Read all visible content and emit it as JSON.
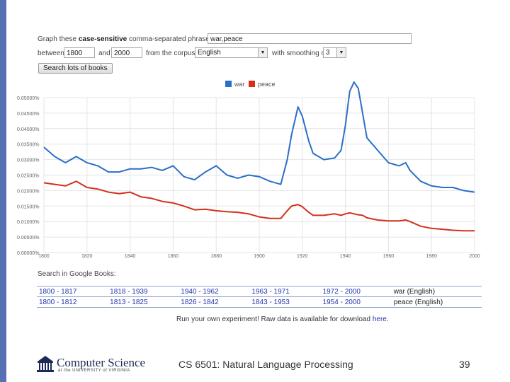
{
  "form": {
    "graph_prefix": "Graph these",
    "graph_bold": "case-sensitive",
    "graph_suffix": "comma-separated phrases:",
    "phrases_value": "war,peace",
    "between_label": "between",
    "start_year": "1800",
    "and_label": "and",
    "end_year": "2000",
    "corpus_label": "from the corpus",
    "corpus_value": "English",
    "smoothing_label": "with smoothing of",
    "smoothing_value": "3",
    "search_button": "Search lots of books"
  },
  "chart_data": {
    "type": "line",
    "x": [
      1800,
      1805,
      1810,
      1815,
      1820,
      1825,
      1830,
      1835,
      1840,
      1845,
      1850,
      1855,
      1860,
      1865,
      1870,
      1875,
      1880,
      1885,
      1890,
      1895,
      1900,
      1905,
      1910,
      1913,
      1915,
      1918,
      1920,
      1923,
      1925,
      1930,
      1935,
      1938,
      1940,
      1942,
      1944,
      1946,
      1948,
      1950,
      1955,
      1960,
      1965,
      1968,
      1970,
      1975,
      1980,
      1985,
      1990,
      1995,
      2000
    ],
    "series": [
      {
        "name": "war",
        "color": "#2a6fc9",
        "values": [
          0.0034,
          0.0031,
          0.0029,
          0.0031,
          0.0029,
          0.0028,
          0.0026,
          0.0026,
          0.0027,
          0.0027,
          0.00275,
          0.00265,
          0.0028,
          0.00245,
          0.00235,
          0.0026,
          0.0028,
          0.0025,
          0.0024,
          0.0025,
          0.00245,
          0.0023,
          0.0022,
          0.003,
          0.0038,
          0.0047,
          0.0044,
          0.0036,
          0.0032,
          0.003,
          0.00305,
          0.0033,
          0.0041,
          0.0052,
          0.0055,
          0.0053,
          0.0045,
          0.0037,
          0.0033,
          0.0029,
          0.0028,
          0.0029,
          0.00265,
          0.0023,
          0.00215,
          0.0021,
          0.0021,
          0.002,
          0.00195
        ]
      },
      {
        "name": "peace",
        "color": "#d4301c",
        "values": [
          0.00225,
          0.0022,
          0.00215,
          0.0023,
          0.0021,
          0.00205,
          0.00195,
          0.0019,
          0.00195,
          0.0018,
          0.00175,
          0.00165,
          0.0016,
          0.0015,
          0.00138,
          0.0014,
          0.00135,
          0.00132,
          0.0013,
          0.00125,
          0.00115,
          0.0011,
          0.0011,
          0.00135,
          0.0015,
          0.00155,
          0.00148,
          0.0013,
          0.0012,
          0.0012,
          0.00125,
          0.0012,
          0.00125,
          0.00128,
          0.00125,
          0.00122,
          0.0012,
          0.00112,
          0.00105,
          0.00102,
          0.00102,
          0.00105,
          0.001,
          0.00085,
          0.00078,
          0.00075,
          0.00072,
          0.0007,
          0.0007
        ]
      }
    ],
    "ylim": [
      0,
      0.005
    ],
    "xlim": [
      1800,
      2000
    ],
    "y_tick_values": [
      0,
      0.0005,
      0.001,
      0.0015,
      0.002,
      0.0025,
      0.003,
      0.0035,
      0.004,
      0.0045,
      0.005
    ],
    "y_tick_labels": [
      "0.00000%",
      "0.00500%",
      "0.01000%",
      "0.01500%",
      "0.02000%",
      "0.02500%",
      "0.03000%",
      "0.03500%",
      "0.04000%",
      "0.04500%",
      "0.05000%"
    ],
    "x_tick_values": [
      1800,
      1820,
      1840,
      1860,
      1880,
      1900,
      1920,
      1940,
      1960,
      1980,
      2000
    ],
    "x_tick_labels": [
      "1800",
      "1820",
      "1840",
      "1860",
      "1880",
      "1900",
      "1920",
      "1940",
      "1960",
      "1980",
      "2000"
    ],
    "grid": true,
    "legend": "top-center"
  },
  "books": {
    "label": "Search in Google Books:",
    "rows": [
      {
        "ranges": [
          "1800 - 1817",
          "1818 - 1939",
          "1940 - 1962",
          "1963 - 1971",
          "1972 - 2000"
        ],
        "term": "war (English)"
      },
      {
        "ranges": [
          "1800 - 1812",
          "1813 - 1825",
          "1826 - 1842",
          "1843 - 1953",
          "1954 - 2000"
        ],
        "term": "peace (English)"
      }
    ]
  },
  "run_own": {
    "text": "Run your own experiment! Raw data is available for download",
    "link": "here",
    "end": "."
  },
  "footer": {
    "logo_title": "Computer Science",
    "logo_subtitle": "at the UNIVERSITY of VIRGINIA",
    "course": "CS 6501: Natural Language Processing",
    "page_number": "39"
  }
}
